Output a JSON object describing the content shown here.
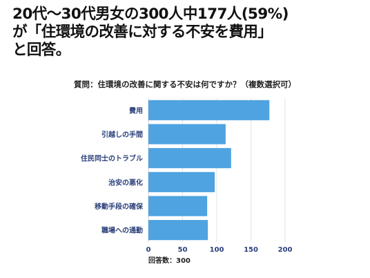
{
  "headline": {
    "line1": "20代〜30代男女の300人中177人(59%)",
    "line2": "が「住環境の改善に対する不安を費用」",
    "line3": "と回答。"
  },
  "chart_data": {
    "type": "bar",
    "orientation": "horizontal",
    "title": "質問：住環境の改善に関する不安は何ですか？（複数選択可）",
    "categories": [
      "費用",
      "引越しの手間",
      "住民同士のトラブル",
      "治安の悪化",
      "移動手段の確保",
      "職場への通勤"
    ],
    "values": [
      177,
      113,
      121,
      97,
      86,
      87
    ],
    "xlabel": "回答数：300",
    "xlim": [
      0,
      200
    ],
    "xticks": [
      0,
      50,
      100,
      150,
      200
    ],
    "grid": true,
    "bar_color": "#4fa3e0",
    "label_color": "#2a3f7a"
  }
}
